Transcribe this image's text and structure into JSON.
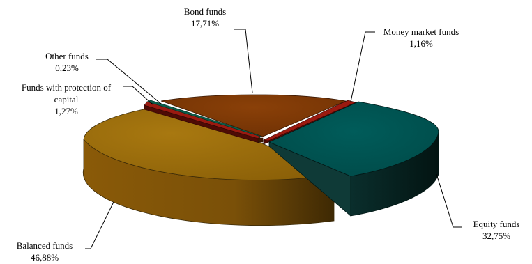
{
  "chart_data": {
    "type": "pie",
    "title": "",
    "three_d": true,
    "slices": [
      {
        "name": "Money market funds",
        "label": "1,16%",
        "value": 1.16,
        "color": "#9b1a10"
      },
      {
        "name": "Equity funds",
        "label": "32,75%",
        "value": 32.75,
        "color": "#00504f"
      },
      {
        "name": "Balanced funds",
        "label": "46,88%",
        "value": 46.88,
        "color": "#8b6008"
      },
      {
        "name": "Funds with protection of capital",
        "label": "1,27%",
        "value": 1.27,
        "color": "#9b1a10"
      },
      {
        "name": "Other funds",
        "label": "0,23%",
        "value": 0.23,
        "color": "#0b5e4a"
      },
      {
        "name": "Bond funds",
        "label": "17,71%",
        "value": 17.71,
        "color": "#7a3506"
      }
    ]
  }
}
